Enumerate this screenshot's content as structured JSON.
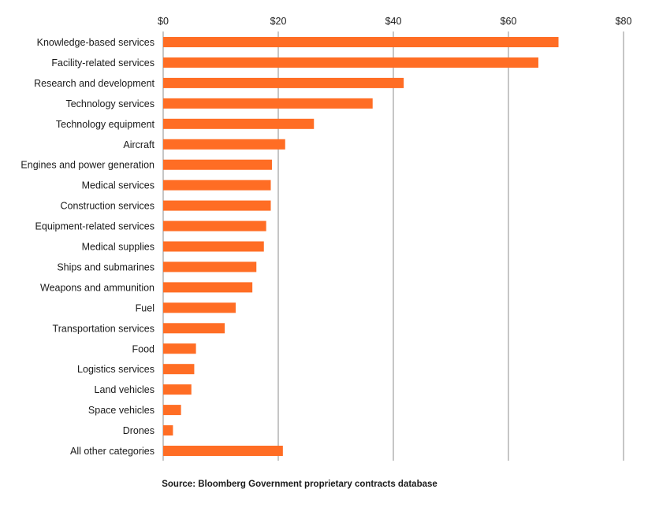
{
  "chart_data": {
    "type": "bar",
    "orientation": "horizontal",
    "title": "",
    "xlabel": "",
    "ylabel": "",
    "xlim": [
      0,
      80
    ],
    "x_ticks": [
      "$0",
      "$20",
      "$40",
      "$60",
      "$80"
    ],
    "x_tick_values": [
      0,
      20,
      40,
      60,
      80
    ],
    "grid": true,
    "bar_color": "#ff6d24",
    "categories": [
      "Knowledge-based services",
      "Facility-related services",
      "Research and development",
      "Technology services",
      "Technology equipment",
      "Aircraft",
      "Engines and power generation",
      "Medical services",
      "Construction services",
      "Equipment-related services",
      "Medical supplies",
      "Ships and submarines",
      "Weapons and ammunition",
      "Fuel",
      "Transportation services",
      "Food",
      "Logistics services",
      "Land vehicles",
      "Space vehicles",
      "Drones",
      "All  other categories"
    ],
    "values": [
      68.7,
      65.2,
      41.8,
      36.4,
      26.2,
      21.2,
      18.9,
      18.7,
      18.7,
      17.9,
      17.5,
      16.2,
      15.5,
      12.6,
      10.7,
      5.7,
      5.4,
      4.9,
      3.1,
      1.7,
      20.8
    ]
  },
  "source_text": "Source: Bloomberg Government proprietary contracts database"
}
